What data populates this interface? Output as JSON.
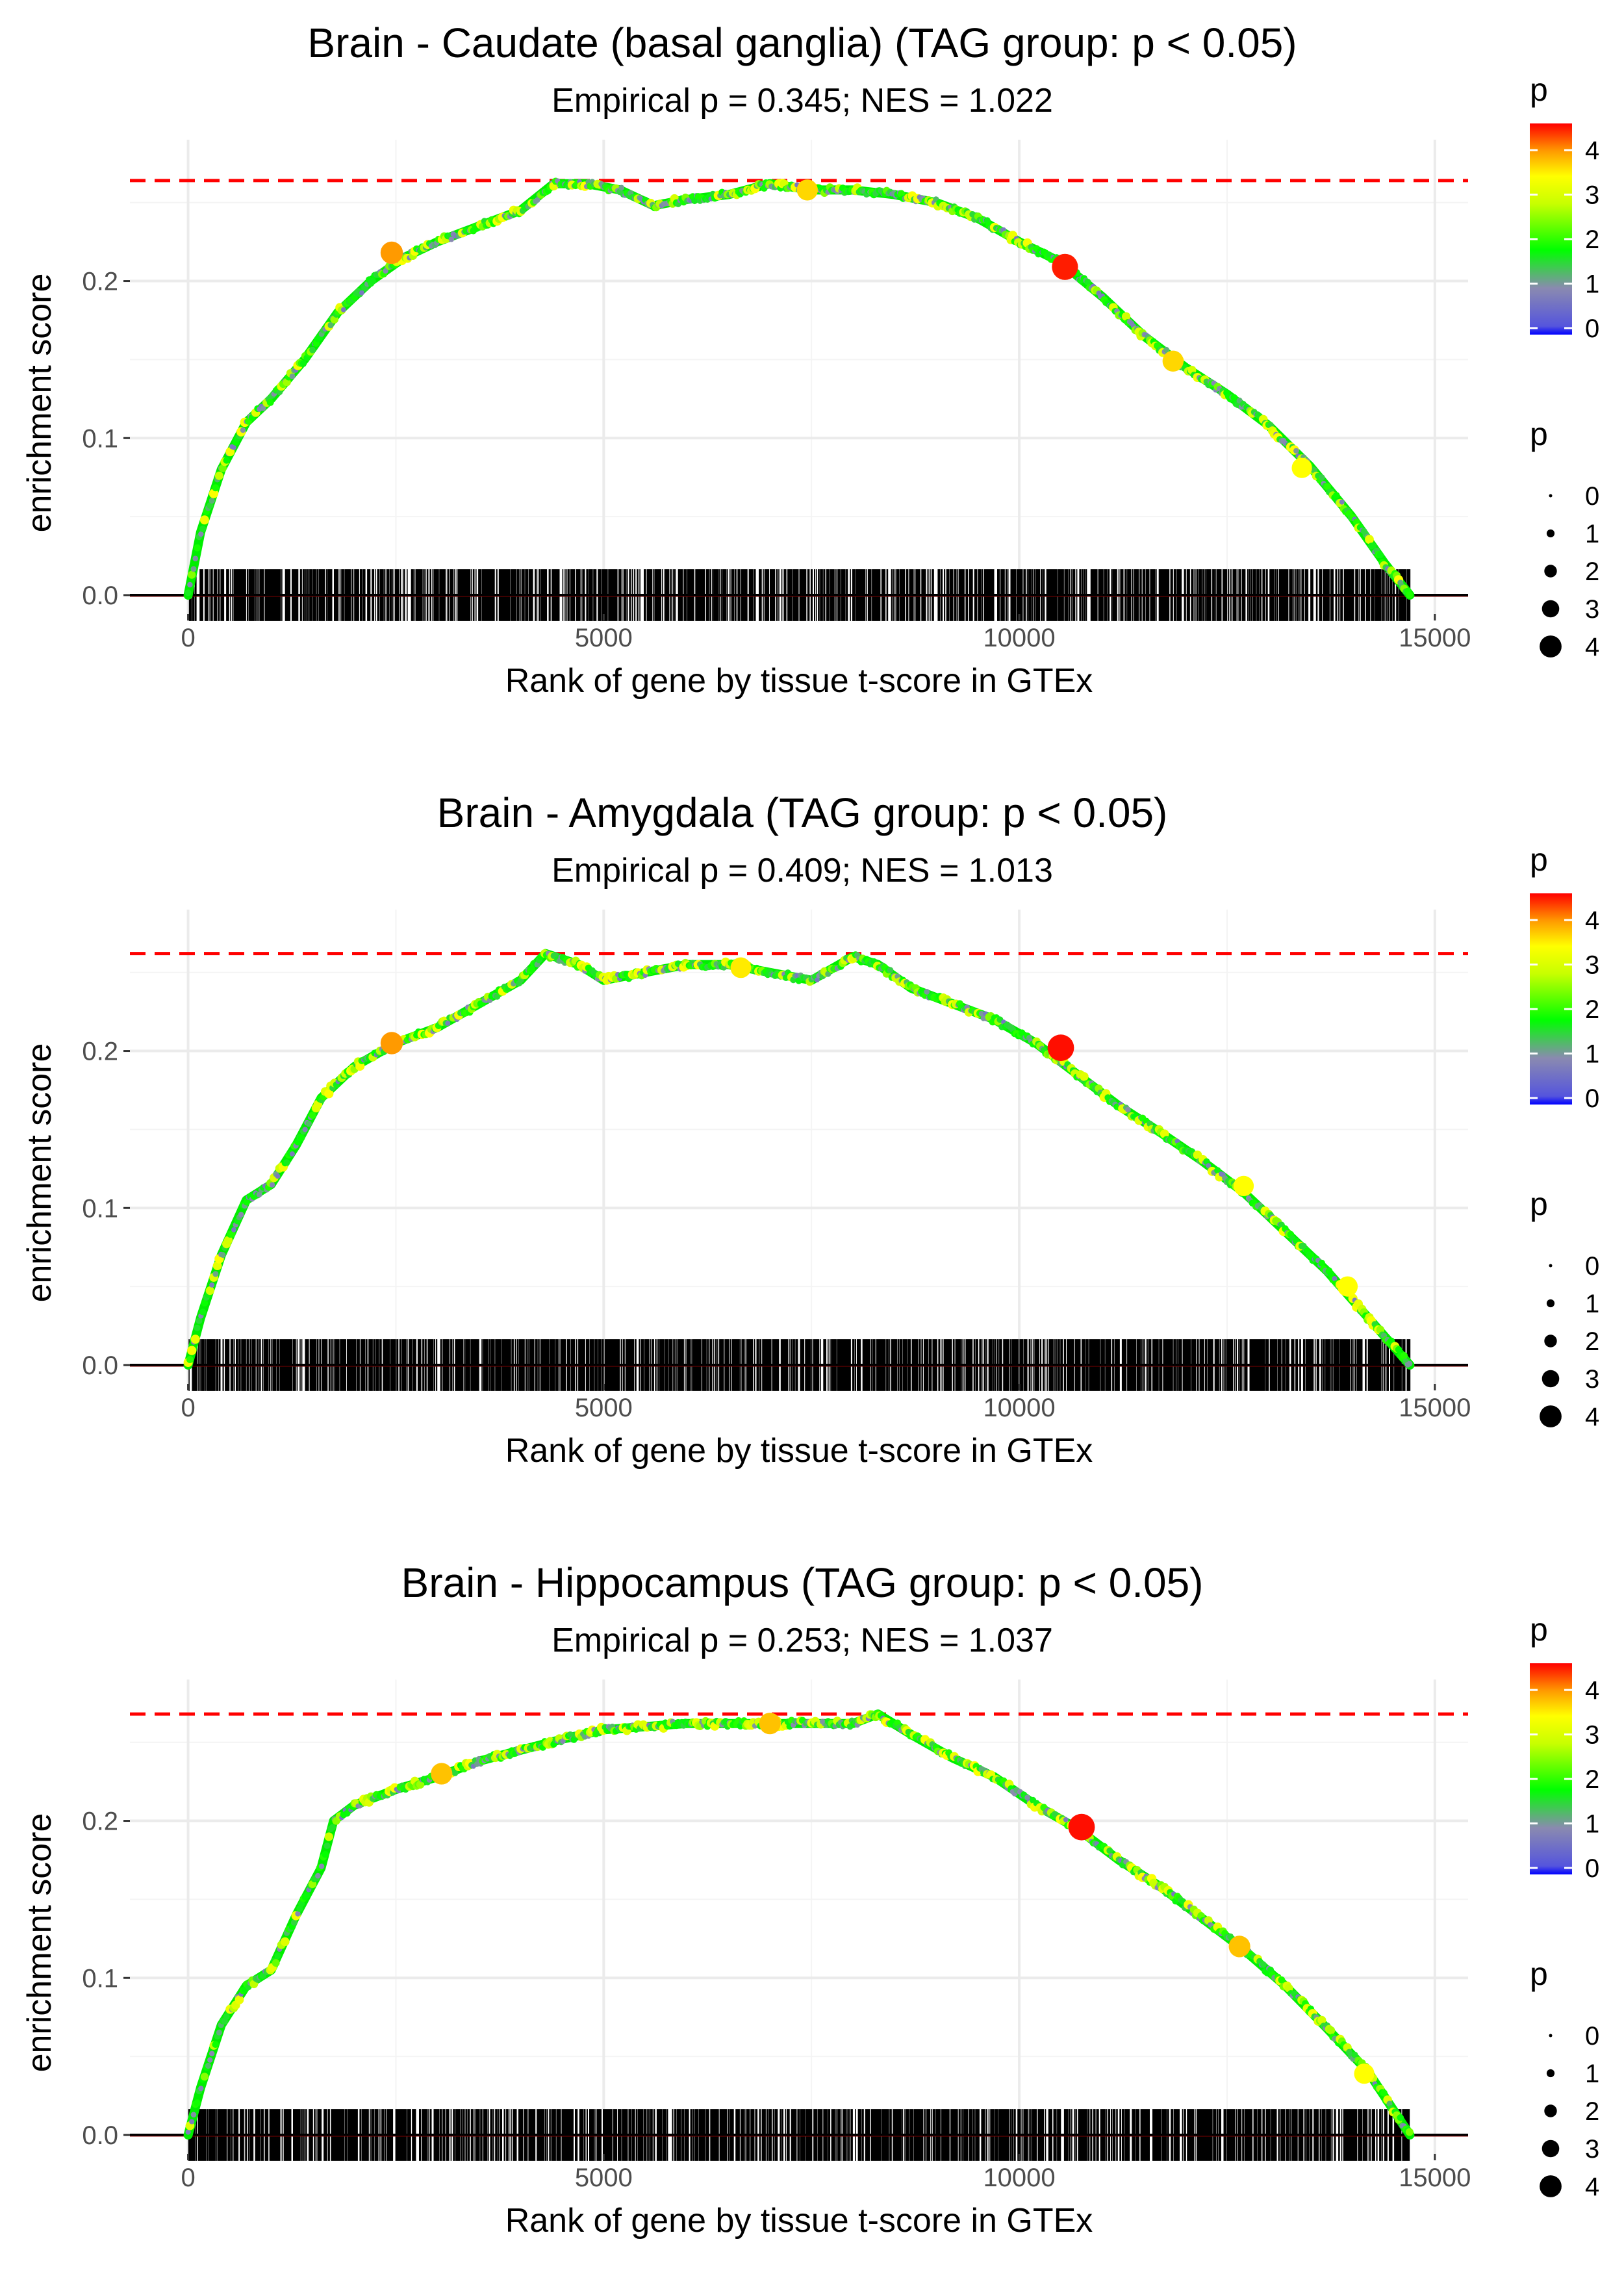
{
  "chart_data": [
    {
      "type": "line",
      "title": "Brain - Caudate (basal ganglia) (TAG group: p < 0.05)",
      "subtitle": "Empirical p = 0.345; NES = 1.022",
      "xlabel": "Rank of gene by tissue t-score in GTEx",
      "ylabel": "enrichment score",
      "xlim": [
        -700,
        15400
      ],
      "ylim": [
        -0.012,
        0.29
      ],
      "xticks": [
        0,
        5000,
        10000,
        15000
      ],
      "xtick_labels": [
        "0",
        "5000",
        "10000",
        "15000"
      ],
      "yticks": [
        0.0,
        0.1,
        0.2
      ],
      "ytick_labels": [
        "0.0",
        "0.1",
        "0.2"
      ],
      "max_es": 0.264,
      "n_genes": 14700,
      "curve": {
        "x": [
          0,
          150,
          400,
          700,
          1000,
          1400,
          1800,
          2200,
          2600,
          3000,
          3500,
          4000,
          4400,
          4800,
          5200,
          5600,
          6000,
          6500,
          7000,
          7500,
          8000,
          8500,
          9000,
          9500,
          10000,
          10500,
          11000,
          11500,
          12000,
          12500,
          13000,
          13500,
          14000,
          14400,
          14700
        ],
        "y": [
          0,
          0.04,
          0.08,
          0.11,
          0.125,
          0.15,
          0.18,
          0.2,
          0.215,
          0.225,
          0.235,
          0.245,
          0.262,
          0.262,
          0.258,
          0.248,
          0.252,
          0.255,
          0.262,
          0.258,
          0.258,
          0.255,
          0.25,
          0.24,
          0.225,
          0.212,
          0.19,
          0.165,
          0.145,
          0.128,
          0.108,
          0.082,
          0.05,
          0.02,
          0
        ]
      },
      "highlight_points": [
        {
          "x": 2450,
          "y": 0.218,
          "p": 3.5
        },
        {
          "x": 7450,
          "y": 0.258,
          "p": 3.2
        },
        {
          "x": 10550,
          "y": 0.209,
          "p": 4.4
        },
        {
          "x": 11850,
          "y": 0.149,
          "p": 3.2
        },
        {
          "x": 13400,
          "y": 0.081,
          "p": 3.0
        }
      ]
    },
    {
      "type": "line",
      "title": "Brain - Amygdala (TAG group: p < 0.05)",
      "subtitle": "Empirical p = 0.409; NES = 1.013",
      "xlabel": "Rank of gene by tissue t-score in GTEx",
      "ylabel": "enrichment score",
      "xlim": [
        -700,
        15400
      ],
      "ylim": [
        -0.012,
        0.29
      ],
      "xticks": [
        0,
        5000,
        10000,
        15000
      ],
      "xtick_labels": [
        "0",
        "5000",
        "10000",
        "15000"
      ],
      "yticks": [
        0.0,
        0.1,
        0.2
      ],
      "ytick_labels": [
        "0.0",
        "0.1",
        "0.2"
      ],
      "max_es": 0.262,
      "n_genes": 14700,
      "curve": {
        "x": [
          0,
          150,
          400,
          700,
          1000,
          1300,
          1600,
          2000,
          2500,
          3000,
          3500,
          4000,
          4300,
          4700,
          5000,
          5500,
          6000,
          6500,
          7000,
          7500,
          8000,
          8300,
          8700,
          9200,
          9700,
          10200,
          10700,
          11200,
          11700,
          12200,
          12700,
          13200,
          13700,
          14200,
          14700
        ],
        "y": [
          0,
          0.03,
          0.07,
          0.105,
          0.115,
          0.14,
          0.17,
          0.19,
          0.205,
          0.215,
          0.23,
          0.245,
          0.262,
          0.255,
          0.245,
          0.25,
          0.255,
          0.255,
          0.25,
          0.245,
          0.26,
          0.255,
          0.24,
          0.23,
          0.22,
          0.205,
          0.185,
          0.165,
          0.148,
          0.13,
          0.11,
          0.085,
          0.06,
          0.03,
          0
        ]
      },
      "highlight_points": [
        {
          "x": 2450,
          "y": 0.205,
          "p": 3.5
        },
        {
          "x": 6650,
          "y": 0.253,
          "p": 3.1
        },
        {
          "x": 10500,
          "y": 0.202,
          "p": 4.5
        },
        {
          "x": 12700,
          "y": 0.114,
          "p": 3.0
        },
        {
          "x": 13950,
          "y": 0.05,
          "p": 3.0
        }
      ]
    },
    {
      "type": "line",
      "title": "Brain - Hippocampus (TAG group: p < 0.05)",
      "subtitle": "Empirical p = 0.253; NES = 1.037",
      "xlabel": "Rank of gene by tissue t-score in GTEx",
      "ylabel": "enrichment score",
      "xlim": [
        -700,
        15400
      ],
      "ylim": [
        -0.012,
        0.29
      ],
      "xticks": [
        0,
        5000,
        10000,
        15000
      ],
      "xtick_labels": [
        "0",
        "5000",
        "10000",
        "15000"
      ],
      "yticks": [
        0.0,
        0.1,
        0.2
      ],
      "ytick_labels": [
        "0.0",
        "0.1",
        "0.2"
      ],
      "max_es": 0.268,
      "n_genes": 14700,
      "curve": {
        "x": [
          0,
          150,
          400,
          700,
          1000,
          1300,
          1600,
          1750,
          2000,
          2500,
          3000,
          3500,
          4000,
          4500,
          5000,
          5500,
          6000,
          6500,
          7000,
          7500,
          8000,
          8300,
          8700,
          9200,
          9700,
          10200,
          10700,
          11200,
          11700,
          12200,
          12700,
          13200,
          13700,
          14200,
          14700
        ],
        "y": [
          0,
          0.03,
          0.07,
          0.095,
          0.105,
          0.14,
          0.17,
          0.2,
          0.21,
          0.22,
          0.228,
          0.238,
          0.245,
          0.252,
          0.258,
          0.26,
          0.262,
          0.262,
          0.262,
          0.262,
          0.262,
          0.268,
          0.255,
          0.24,
          0.228,
          0.21,
          0.195,
          0.175,
          0.158,
          0.138,
          0.118,
          0.095,
          0.068,
          0.04,
          0
        ]
      },
      "highlight_points": [
        {
          "x": 3050,
          "y": 0.23,
          "p": 3.3
        },
        {
          "x": 7000,
          "y": 0.262,
          "p": 3.3
        },
        {
          "x": 10750,
          "y": 0.196,
          "p": 4.5
        },
        {
          "x": 12650,
          "y": 0.12,
          "p": 3.3
        },
        {
          "x": 14150,
          "y": 0.039,
          "p": 3.0
        }
      ]
    }
  ],
  "legends": [
    {
      "color_title": "p",
      "color_labels": [
        "0",
        "1",
        "2",
        "3",
        "4"
      ],
      "size_title": "p",
      "size_labels": [
        "0",
        "1",
        "2",
        "3",
        "4"
      ]
    },
    {
      "color_title": "p",
      "color_labels": [
        "0",
        "1",
        "2",
        "3",
        "4"
      ],
      "size_title": "p",
      "size_labels": [
        "0",
        "1",
        "2",
        "3",
        "4"
      ]
    },
    {
      "color_title": "p",
      "color_labels": [
        "0",
        "1",
        "2",
        "3",
        "4"
      ],
      "size_title": "p",
      "size_labels": [
        "0",
        "1",
        "2",
        "3",
        "4"
      ]
    }
  ],
  "colors": {
    "max_line": "#ff0000",
    "zero_line": "#000000",
    "gene_ticks": "#000000",
    "gridline": "#ebebeb",
    "curve_base": "#00ee00",
    "gradient": [
      "#0000ff",
      "#7f7fbf",
      "#00ff00",
      "#ffff00",
      "#ff8000",
      "#ff0000"
    ]
  }
}
